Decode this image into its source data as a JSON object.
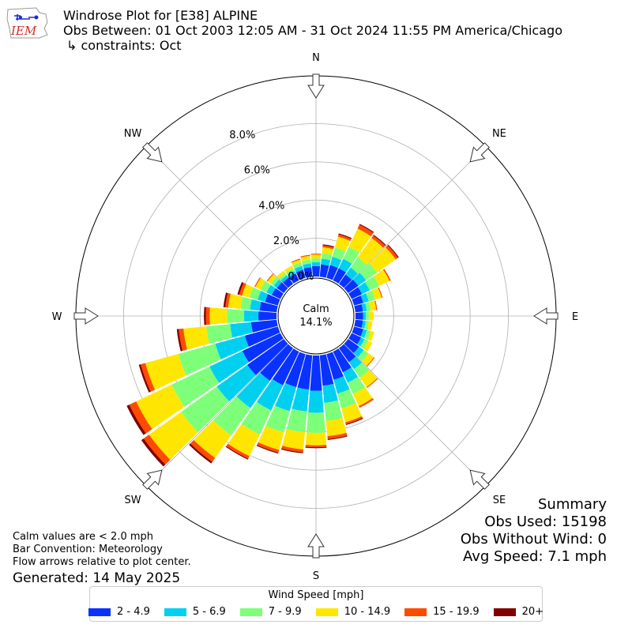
{
  "header": {
    "logo_text": "IEM",
    "title_line1": "Windrose Plot for [E38] ALPINE",
    "title_line2": "Obs Between: 01 Oct 2003 12:05 AM - 31 Oct 2024 11:55 PM America/Chicago",
    "title_line3": "↳ constraints: Oct"
  },
  "summary": {
    "title": "Summary",
    "obs_used": "Obs Used: 15198",
    "obs_without_wind": "Obs Without Wind: 0",
    "avg_speed": "Avg Speed: 7.1 mph"
  },
  "notes": {
    "calm_note": "Calm values are < 2.0 mph",
    "bar_convention": "Bar Convention: Meteorology",
    "flow_arrows": "Flow arrows relative to plot center.",
    "generated": "Generated: 14 May 2025"
  },
  "legend": {
    "title": "Wind Speed [mph]",
    "items": [
      {
        "label": "2 - 4.9",
        "color": "#0a32ff"
      },
      {
        "label": "5 - 6.9",
        "color": "#00d0f0"
      },
      {
        "label": "7 - 9.9",
        "color": "#7dff7a"
      },
      {
        "label": "10 - 14.9",
        "color": "#ffe600"
      },
      {
        "label": "15 - 19.9",
        "color": "#ff4a00"
      },
      {
        "label": "20+",
        "color": "#800000"
      }
    ]
  },
  "chart_data": {
    "type": "windrose",
    "calm_label": "Calm",
    "calm_value": "14.1%",
    "direction_labels": [
      "N",
      "NE",
      "E",
      "SE",
      "S",
      "SW",
      "W",
      "NW"
    ],
    "radial_tick_labels": [
      "0.0%",
      "2.0%",
      "4.0%",
      "6.0%",
      "8.0%"
    ],
    "radial_ticks": [
      0,
      2,
      4,
      6,
      8
    ],
    "rmax": 10.5,
    "bins": [
      "2 - 4.9",
      "5 - 6.9",
      "7 - 9.9",
      "10 - 14.9",
      "15 - 19.9",
      "20+"
    ],
    "directions_deg": [
      0,
      10,
      20,
      30,
      40,
      50,
      60,
      70,
      80,
      90,
      100,
      110,
      120,
      130,
      140,
      150,
      160,
      170,
      180,
      190,
      200,
      210,
      220,
      230,
      240,
      250,
      260,
      270,
      280,
      290,
      300,
      310,
      320,
      330,
      340,
      350
    ],
    "values": [
      [
        0.55,
        0.2,
        0.2,
        0.2,
        0.05,
        0.0
      ],
      [
        0.65,
        0.3,
        0.3,
        0.3,
        0.1,
        0.05
      ],
      [
        0.7,
        0.45,
        0.5,
        0.6,
        0.12,
        0.05
      ],
      [
        0.7,
        0.55,
        0.7,
        1.05,
        0.22,
        0.05
      ],
      [
        0.6,
        0.45,
        0.65,
        1.25,
        0.15,
        0.05
      ],
      [
        0.65,
        0.5,
        0.7,
        1.2,
        0.15,
        0.05
      ],
      [
        0.6,
        0.45,
        0.55,
        0.6,
        0.07,
        0.0
      ],
      [
        0.5,
        0.3,
        0.35,
        0.35,
        0.05,
        0.0
      ],
      [
        0.4,
        0.2,
        0.2,
        0.3,
        0.05,
        0.0
      ],
      [
        0.4,
        0.15,
        0.15,
        0.25,
        0.0,
        0.0
      ],
      [
        0.4,
        0.15,
        0.15,
        0.2,
        0.0,
        0.0
      ],
      [
        0.5,
        0.2,
        0.2,
        0.2,
        0.0,
        0.0
      ],
      [
        0.55,
        0.2,
        0.2,
        0.25,
        0.0,
        0.0
      ],
      [
        0.7,
        0.3,
        0.3,
        0.35,
        0.05,
        0.0
      ],
      [
        0.9,
        0.45,
        0.55,
        0.6,
        0.05,
        0.0
      ],
      [
        1.2,
        0.6,
        0.65,
        0.7,
        0.1,
        0.0
      ],
      [
        1.4,
        0.75,
        0.8,
        0.75,
        0.1,
        0.05
      ],
      [
        1.6,
        0.9,
        0.95,
        0.8,
        0.15,
        0.05
      ],
      [
        1.85,
        1.15,
        1.05,
        0.65,
        0.1,
        0.05
      ],
      [
        1.8,
        1.15,
        1.1,
        0.9,
        0.15,
        0.05
      ],
      [
        1.8,
        1.3,
        1.15,
        0.95,
        0.15,
        0.05
      ],
      [
        1.95,
        1.45,
        1.4,
        1.25,
        0.15,
        0.05
      ],
      [
        2.1,
        1.75,
        1.75,
        1.45,
        0.25,
        0.1
      ],
      [
        2.35,
        1.95,
        2.3,
        2.05,
        0.35,
        0.15
      ],
      [
        2.2,
        1.9,
        2.2,
        2.05,
        0.4,
        0.15
      ],
      [
        1.8,
        1.6,
        2.0,
        1.8,
        0.25,
        0.1
      ],
      [
        1.35,
        1.1,
        1.25,
        1.2,
        0.25,
        0.1
      ],
      [
        0.95,
        0.75,
        0.9,
        0.9,
        0.2,
        0.1
      ],
      [
        0.9,
        0.5,
        0.5,
        0.65,
        0.15,
        0.1
      ],
      [
        0.7,
        0.4,
        0.45,
        0.4,
        0.15,
        0.1
      ],
      [
        0.5,
        0.3,
        0.35,
        0.3,
        0.05,
        0.0
      ],
      [
        0.45,
        0.2,
        0.2,
        0.2,
        0.05,
        0.0
      ],
      [
        0.4,
        0.15,
        0.15,
        0.15,
        0.0,
        0.0
      ],
      [
        0.4,
        0.15,
        0.15,
        0.15,
        0.0,
        0.0
      ],
      [
        0.45,
        0.2,
        0.2,
        0.15,
        0.05,
        0.0
      ],
      [
        0.5,
        0.2,
        0.2,
        0.2,
        0.05,
        0.0
      ]
    ]
  }
}
